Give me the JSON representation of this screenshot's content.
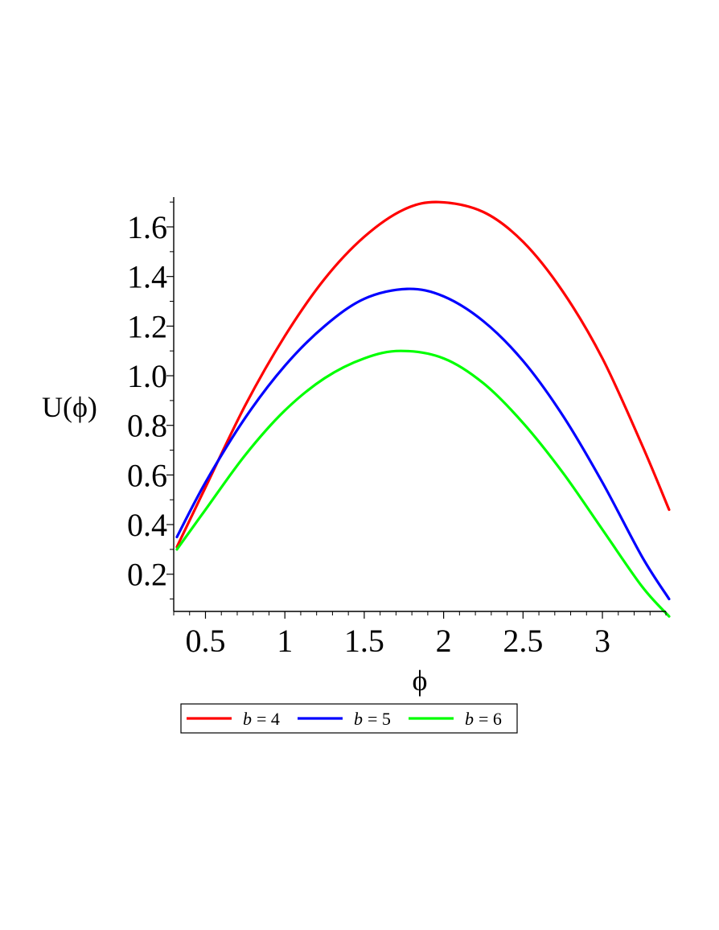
{
  "chart_data": {
    "type": "line",
    "title": "",
    "xlabel": "ϕ",
    "ylabel": "U(ϕ)",
    "xlim": [
      0.3,
      3.4
    ],
    "ylim": [
      0.05,
      1.72
    ],
    "x_ticks": [
      0.5,
      1,
      1.5,
      2,
      2.5,
      3
    ],
    "x_tick_labels": [
      "0.5",
      "1",
      "1.5",
      "2",
      "2.5",
      "3"
    ],
    "y_ticks": [
      0.2,
      0.4,
      0.6,
      0.8,
      1.0,
      1.2,
      1.4,
      1.6
    ],
    "y_tick_labels": [
      "0.2",
      "0.4",
      "0.6",
      "0.8",
      "1.0",
      "1.2",
      "1.4",
      "1.6"
    ],
    "grid": false,
    "legend_position": "bottom",
    "series": [
      {
        "name": "b = 4",
        "legend_var": "b",
        "legend_value": "= 4",
        "color": "#ff0000",
        "x": [
          0.32,
          0.5,
          0.75,
          1.0,
          1.25,
          1.5,
          1.75,
          1.97,
          2.25,
          2.5,
          2.75,
          3.0,
          3.25,
          3.42
        ],
        "y": [
          0.31,
          0.55,
          0.88,
          1.16,
          1.39,
          1.56,
          1.67,
          1.7,
          1.66,
          1.54,
          1.34,
          1.07,
          0.72,
          0.46
        ]
      },
      {
        "name": "b = 5",
        "legend_var": "b",
        "legend_value": "= 5",
        "color": "#0000ff",
        "x": [
          0.32,
          0.5,
          0.75,
          1.0,
          1.25,
          1.5,
          1.77,
          2.0,
          2.25,
          2.5,
          2.75,
          3.0,
          3.25,
          3.42
        ],
        "y": [
          0.35,
          0.57,
          0.83,
          1.04,
          1.2,
          1.31,
          1.35,
          1.32,
          1.22,
          1.06,
          0.84,
          0.57,
          0.27,
          0.1
        ]
      },
      {
        "name": "b = 6",
        "legend_var": "b",
        "legend_value": "= 6",
        "color": "#00ff00",
        "x": [
          0.32,
          0.5,
          0.75,
          1.0,
          1.25,
          1.5,
          1.73,
          2.0,
          2.25,
          2.5,
          2.75,
          3.0,
          3.25,
          3.42
        ],
        "y": [
          0.3,
          0.46,
          0.68,
          0.86,
          0.99,
          1.07,
          1.1,
          1.07,
          0.97,
          0.81,
          0.61,
          0.38,
          0.15,
          0.03
        ]
      }
    ]
  }
}
